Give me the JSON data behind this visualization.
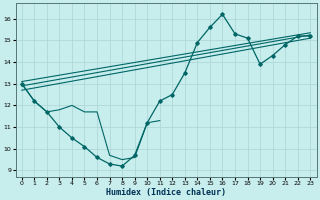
{
  "xlabel": "Humidex (Indice chaleur)",
  "bg_color": "#c8eded",
  "grid_color": "#b0d8d8",
  "line_color": "#006666",
  "xlim": [
    -0.5,
    23.5
  ],
  "ylim": [
    8.7,
    16.7
  ],
  "yticks": [
    9,
    10,
    11,
    12,
    13,
    14,
    15,
    16
  ],
  "xticks": [
    0,
    1,
    2,
    3,
    4,
    5,
    6,
    7,
    8,
    9,
    10,
    11,
    12,
    13,
    14,
    15,
    16,
    17,
    18,
    19,
    20,
    21,
    22,
    23
  ],
  "main_x": [
    0,
    1,
    2,
    3,
    4,
    5,
    6,
    7,
    8,
    9,
    10,
    11,
    12,
    13,
    14,
    15,
    16,
    17,
    18,
    19,
    20,
    21,
    22,
    23
  ],
  "main_y": [
    13.0,
    12.2,
    11.7,
    11.0,
    10.5,
    10.1,
    9.6,
    9.3,
    9.2,
    9.7,
    11.2,
    12.2,
    12.5,
    13.5,
    14.9,
    15.6,
    16.2,
    15.3,
    15.1,
    13.9,
    14.3,
    14.8,
    15.2,
    15.2
  ],
  "sec_x": [
    0,
    1,
    2,
    3,
    4,
    5,
    6,
    7,
    8,
    9,
    10,
    11
  ],
  "sec_y": [
    13.0,
    12.2,
    11.7,
    11.8,
    12.0,
    11.7,
    11.7,
    9.7,
    9.5,
    9.6,
    11.2,
    11.3
  ],
  "trend_lines": [
    {
      "x": [
        0,
        23
      ],
      "y": [
        12.7,
        15.1
      ]
    },
    {
      "x": [
        0,
        23
      ],
      "y": [
        12.9,
        15.25
      ]
    },
    {
      "x": [
        0,
        23
      ],
      "y": [
        13.1,
        15.35
      ]
    }
  ]
}
